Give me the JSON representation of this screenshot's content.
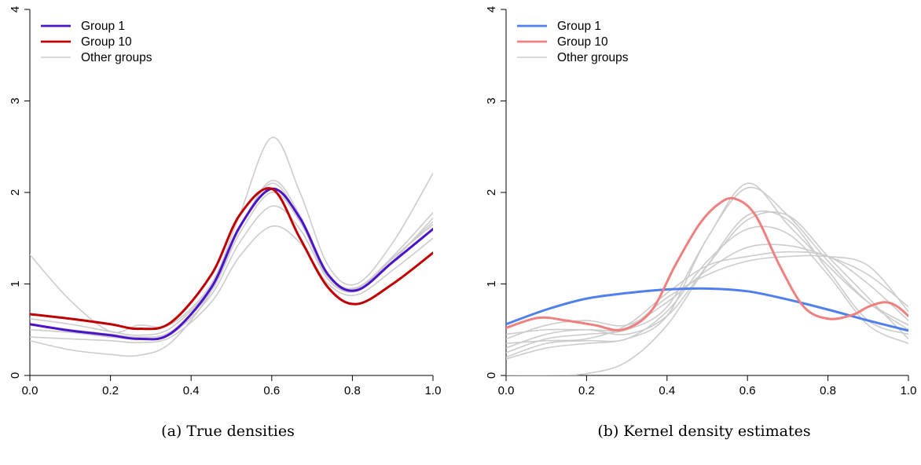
{
  "captions": [
    "(a) True densities",
    "(b) Kernel density estimates"
  ],
  "chart_data": [
    {
      "type": "line",
      "caption": "(a) True densities",
      "xlim": [
        0,
        1
      ],
      "ylim": [
        0,
        4
      ],
      "x_ticks": [
        "0.0",
        "0.2",
        "0.4",
        "0.6",
        "0.8",
        "1.0"
      ],
      "y_ticks": [
        "0",
        "1",
        "2",
        "3",
        "4"
      ],
      "legend": {
        "position": "top-left",
        "entries": [
          "Group 1",
          "Group 10",
          "Other groups"
        ]
      },
      "series": [
        {
          "name": "Other groups",
          "color": "#cccccc",
          "x": [
            0,
            0.1,
            0.2,
            0.27,
            0.35,
            0.45,
            0.52,
            0.6,
            0.67,
            0.74,
            0.81,
            0.9,
            1
          ],
          "y": [
            1.32,
            0.82,
            0.48,
            0.55,
            0.56,
            1.0,
            1.75,
            2.6,
            2.0,
            1.2,
            1.0,
            1.45,
            2.21
          ]
        },
        {
          "name": "Other groups",
          "color": "#cccccc",
          "x": [
            0,
            0.1,
            0.2,
            0.27,
            0.35,
            0.45,
            0.52,
            0.6,
            0.67,
            0.74,
            0.81,
            0.9,
            1
          ],
          "y": [
            0.62,
            0.56,
            0.48,
            0.44,
            0.52,
            0.97,
            1.6,
            2.13,
            1.75,
            1.1,
            0.96,
            1.3,
            1.78
          ]
        },
        {
          "name": "Other groups",
          "color": "#cccccc",
          "x": [
            0,
            0.1,
            0.2,
            0.27,
            0.35,
            0.45,
            0.52,
            0.6,
            0.67,
            0.74,
            0.81,
            0.9,
            1
          ],
          "y": [
            0.5,
            0.47,
            0.42,
            0.4,
            0.45,
            0.88,
            1.45,
            1.85,
            1.6,
            1.05,
            0.92,
            1.25,
            1.72
          ]
        },
        {
          "name": "Other groups",
          "color": "#cccccc",
          "x": [
            0,
            0.1,
            0.2,
            0.27,
            0.35,
            0.45,
            0.52,
            0.6,
            0.67,
            0.74,
            0.81,
            0.9,
            1
          ],
          "y": [
            0.42,
            0.4,
            0.38,
            0.36,
            0.42,
            0.8,
            1.3,
            1.63,
            1.45,
            1.0,
            0.88,
            1.15,
            1.5
          ]
        },
        {
          "name": "Other groups",
          "color": "#cccccc",
          "x": [
            0,
            0.1,
            0.2,
            0.27,
            0.35,
            0.45,
            0.52,
            0.6,
            0.67,
            0.74,
            0.81,
            0.9,
            1
          ],
          "y": [
            0.38,
            0.28,
            0.23,
            0.22,
            0.36,
            0.92,
            1.6,
            2.1,
            1.7,
            1.05,
            0.95,
            1.28,
            1.68
          ]
        },
        {
          "name": "Other groups",
          "color": "#cccccc",
          "x": [
            0,
            0.1,
            0.2,
            0.27,
            0.35,
            0.45,
            0.52,
            0.6,
            0.67,
            0.74,
            0.81,
            0.9,
            1
          ],
          "y": [
            0.55,
            0.5,
            0.45,
            0.42,
            0.48,
            0.92,
            1.55,
            2.0,
            1.68,
            1.08,
            0.93,
            1.28,
            1.65
          ]
        },
        {
          "name": "Group 1",
          "color": "#4b14c8",
          "x": [
            0,
            0.1,
            0.2,
            0.27,
            0.35,
            0.45,
            0.52,
            0.6,
            0.67,
            0.74,
            0.81,
            0.9,
            1
          ],
          "y": [
            0.56,
            0.49,
            0.44,
            0.4,
            0.46,
            0.96,
            1.62,
            2.04,
            1.72,
            1.1,
            0.93,
            1.24,
            1.6
          ]
        },
        {
          "name": "Group 10",
          "color": "#c00000",
          "x": [
            0,
            0.1,
            0.2,
            0.27,
            0.35,
            0.45,
            0.52,
            0.6,
            0.67,
            0.74,
            0.81,
            0.9,
            1
          ],
          "y": [
            0.67,
            0.62,
            0.56,
            0.51,
            0.58,
            1.1,
            1.75,
            2.04,
            1.5,
            0.96,
            0.78,
            1.0,
            1.34
          ]
        }
      ]
    },
    {
      "type": "line",
      "caption": "(b) Kernel density estimates",
      "xlim": [
        0,
        1
      ],
      "ylim": [
        0,
        4
      ],
      "x_ticks": [
        "0.0",
        "0.2",
        "0.4",
        "0.6",
        "0.8",
        "1.0"
      ],
      "y_ticks": [
        "0",
        "1",
        "2",
        "3",
        "4"
      ],
      "legend": {
        "position": "top-left",
        "entries": [
          "Group 1",
          "Group 10",
          "Other groups"
        ]
      },
      "series": [
        {
          "name": "Other groups",
          "color": "#cccccc",
          "x": [
            0,
            0.1,
            0.2,
            0.3,
            0.4,
            0.5,
            0.6,
            0.7,
            0.8,
            0.9,
            1
          ],
          "y": [
            0.18,
            0.3,
            0.35,
            0.4,
            0.65,
            1.5,
            2.05,
            1.75,
            1.25,
            0.8,
            0.5
          ]
        },
        {
          "name": "Other groups",
          "color": "#cccccc",
          "x": [
            0,
            0.1,
            0.2,
            0.3,
            0.4,
            0.5,
            0.6,
            0.7,
            0.8,
            0.9,
            1
          ],
          "y": [
            0.25,
            0.4,
            0.45,
            0.5,
            0.75,
            1.5,
            2.1,
            1.65,
            1.2,
            0.8,
            0.55
          ]
        },
        {
          "name": "Other groups",
          "color": "#cccccc",
          "x": [
            0,
            0.1,
            0.2,
            0.3,
            0.4,
            0.5,
            0.6,
            0.7,
            0.8,
            0.9,
            1
          ],
          "y": [
            0.3,
            0.45,
            0.5,
            0.45,
            0.65,
            1.2,
            1.7,
            1.75,
            1.3,
            0.85,
            0.4
          ]
        },
        {
          "name": "Other groups",
          "color": "#cccccc",
          "x": [
            0,
            0.1,
            0.2,
            0.3,
            0.4,
            0.5,
            0.6,
            0.7,
            0.8,
            0.9,
            1
          ],
          "y": [
            0.35,
            0.38,
            0.4,
            0.55,
            0.9,
            1.2,
            1.3,
            1.35,
            1.3,
            1.0,
            0.6
          ]
        },
        {
          "name": "Other groups",
          "color": "#cccccc",
          "x": [
            0,
            0.1,
            0.2,
            0.3,
            0.4,
            0.5,
            0.6,
            0.7,
            0.8,
            0.9,
            1
          ],
          "y": [
            0.4,
            0.55,
            0.6,
            0.55,
            0.8,
            1.15,
            1.4,
            1.42,
            1.3,
            1.1,
            0.75
          ]
        },
        {
          "name": "Other groups",
          "color": "#cccccc",
          "x": [
            0,
            0.1,
            0.2,
            0.3,
            0.4,
            0.5,
            0.6,
            0.7,
            0.8,
            0.9,
            1
          ],
          "y": [
            0.45,
            0.5,
            0.5,
            0.52,
            0.85,
            1.1,
            1.25,
            1.3,
            1.3,
            1.2,
            0.7
          ]
        },
        {
          "name": "Other groups",
          "color": "#cccccc",
          "x": [
            0,
            0.1,
            0.2,
            0.3,
            0.4,
            0.5,
            0.6,
            0.7,
            0.8,
            0.9,
            1
          ],
          "y": [
            0.2,
            0.35,
            0.38,
            0.4,
            0.7,
            1.25,
            1.6,
            1.55,
            1.1,
            0.55,
            0.35
          ]
        },
        {
          "name": "Other groups",
          "color": "#cccccc",
          "x": [
            0,
            0.1,
            0.2,
            0.3,
            0.4,
            0.5,
            0.6,
            0.7,
            0.8,
            0.9,
            1
          ],
          "y": [
            0.0,
            0.0,
            0.02,
            0.15,
            0.55,
            1.2,
            1.75,
            1.7,
            1.15,
            0.6,
            0.45
          ]
        },
        {
          "name": "Group 1",
          "color": "#5080f0",
          "x": [
            0,
            0.1,
            0.2,
            0.3,
            0.4,
            0.5,
            0.6,
            0.7,
            0.8,
            0.9,
            1
          ],
          "y": [
            0.56,
            0.72,
            0.84,
            0.9,
            0.94,
            0.95,
            0.92,
            0.83,
            0.72,
            0.6,
            0.49
          ]
        },
        {
          "name": "Group 10",
          "color": "#f08080",
          "x": [
            0,
            0.08,
            0.15,
            0.22,
            0.29,
            0.36,
            0.42,
            0.48,
            0.53,
            0.57,
            0.62,
            0.68,
            0.74,
            0.8,
            0.86,
            0.9,
            0.94,
            0.97,
            1
          ],
          "y": [
            0.52,
            0.63,
            0.6,
            0.55,
            0.5,
            0.7,
            1.2,
            1.65,
            1.88,
            1.93,
            1.75,
            1.2,
            0.75,
            0.62,
            0.66,
            0.75,
            0.8,
            0.76,
            0.65
          ]
        }
      ]
    }
  ]
}
